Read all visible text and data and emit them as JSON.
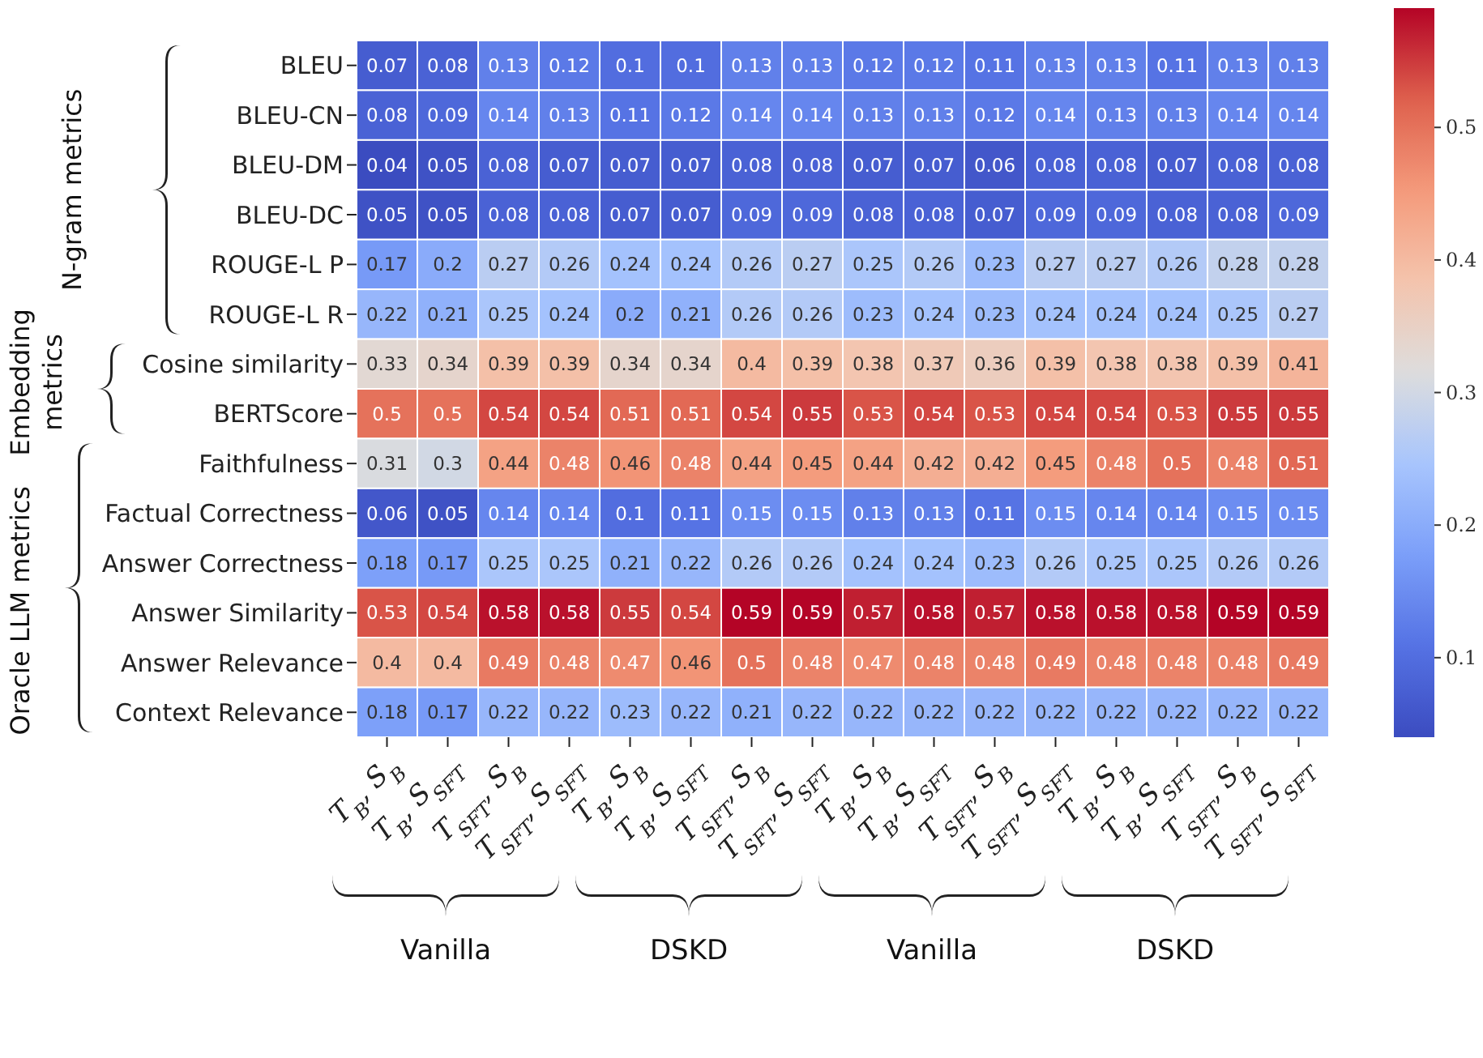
{
  "chart_data": {
    "type": "heatmap",
    "categories": [
      "T$_{B}$, S$_{B}$",
      "T$_{B}$, S$_{SFT}$",
      "T$_{SFT}$, S$_{B}$",
      "T$_{SFT}$, S$_{SFT}$",
      "T$_{B}$, S$_{B}$",
      "T$_{B}$, S$_{SFT}$",
      "T$_{SFT}$, S$_{B}$",
      "T$_{SFT}$, S$_{SFT}$",
      "T$_{B}$, S$_{B}$",
      "T$_{B}$, S$_{SFT}$",
      "T$_{SFT}$, S$_{B}$",
      "T$_{SFT}$, S$_{SFT}$",
      "T$_{B}$, S$_{B}$",
      "T$_{B}$, S$_{SFT}$",
      "T$_{SFT}$, S$_{B}$",
      "T$_{SFT}$, S$_{SFT}$"
    ],
    "y_categories": [
      "BLEU",
      "BLEU-CN",
      "BLEU-DM",
      "BLEU-DC",
      "ROUGE-L P",
      "ROUGE-L R",
      "Cosine similarity",
      "BERTScore",
      "Faithfulness",
      "Factual Correctness",
      "Answer Correctness",
      "Answer Similarity",
      "Answer Relevance",
      "Context Relevance"
    ],
    "cells": [
      [
        0.07,
        0.08,
        0.13,
        0.12,
        0.1,
        0.1,
        0.13,
        0.13,
        0.12,
        0.12,
        0.11,
        0.13,
        0.13,
        0.11,
        0.13,
        0.13
      ],
      [
        0.08,
        0.09,
        0.14,
        0.13,
        0.11,
        0.12,
        0.14,
        0.14,
        0.13,
        0.13,
        0.12,
        0.14,
        0.13,
        0.13,
        0.14,
        0.14
      ],
      [
        0.04,
        0.05,
        0.08,
        0.07,
        0.07,
        0.07,
        0.08,
        0.08,
        0.07,
        0.07,
        0.06,
        0.08,
        0.08,
        0.07,
        0.08,
        0.08
      ],
      [
        0.05,
        0.05,
        0.08,
        0.08,
        0.07,
        0.07,
        0.09,
        0.09,
        0.08,
        0.08,
        0.07,
        0.09,
        0.09,
        0.08,
        0.08,
        0.09
      ],
      [
        0.17,
        0.2,
        0.27,
        0.26,
        0.24,
        0.24,
        0.26,
        0.27,
        0.25,
        0.26,
        0.23,
        0.27,
        0.27,
        0.26,
        0.28,
        0.28
      ],
      [
        0.22,
        0.21,
        0.25,
        0.24,
        0.2,
        0.21,
        0.26,
        0.26,
        0.23,
        0.24,
        0.23,
        0.24,
        0.24,
        0.24,
        0.25,
        0.27
      ],
      [
        0.33,
        0.34,
        0.39,
        0.39,
        0.34,
        0.34,
        0.4,
        0.39,
        0.38,
        0.37,
        0.36,
        0.39,
        0.38,
        0.38,
        0.39,
        0.41
      ],
      [
        0.5,
        0.5,
        0.54,
        0.54,
        0.51,
        0.51,
        0.54,
        0.55,
        0.53,
        0.54,
        0.53,
        0.54,
        0.54,
        0.53,
        0.55,
        0.55
      ],
      [
        0.31,
        0.3,
        0.44,
        0.48,
        0.46,
        0.48,
        0.44,
        0.45,
        0.44,
        0.42,
        0.42,
        0.45,
        0.48,
        0.5,
        0.48,
        0.51
      ],
      [
        0.06,
        0.05,
        0.14,
        0.14,
        0.1,
        0.11,
        0.15,
        0.15,
        0.13,
        0.13,
        0.11,
        0.15,
        0.14,
        0.14,
        0.15,
        0.15
      ],
      [
        0.18,
        0.17,
        0.25,
        0.25,
        0.21,
        0.22,
        0.26,
        0.26,
        0.24,
        0.24,
        0.23,
        0.26,
        0.25,
        0.25,
        0.26,
        0.26
      ],
      [
        0.53,
        0.54,
        0.58,
        0.58,
        0.55,
        0.54,
        0.59,
        0.59,
        0.57,
        0.58,
        0.57,
        0.58,
        0.58,
        0.58,
        0.59,
        0.59
      ],
      [
        0.4,
        0.4,
        0.49,
        0.48,
        0.47,
        0.46,
        0.5,
        0.48,
        0.47,
        0.48,
        0.48,
        0.49,
        0.48,
        0.48,
        0.48,
        0.49
      ],
      [
        0.18,
        0.17,
        0.22,
        0.22,
        0.23,
        0.22,
        0.21,
        0.22,
        0.22,
        0.22,
        0.22,
        0.22,
        0.22,
        0.22,
        0.22,
        0.22
      ]
    ],
    "data_labels": true,
    "clim": [
      0.04,
      0.59
    ],
    "cticks": [
      0.1,
      0.2,
      0.3,
      0.4,
      0.5
    ],
    "annotations": [
      "N-gram metrics",
      "Embedding metrics",
      "Oracle LLM metrics",
      "Vanilla",
      "DSKD",
      "Vanilla",
      "DSKD"
    ]
  }
}
